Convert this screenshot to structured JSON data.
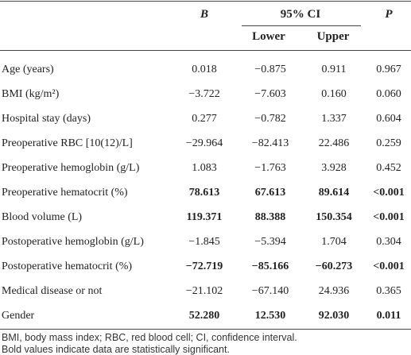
{
  "table": {
    "header": {
      "b": "B",
      "ci": "95% CI",
      "lower": "Lower",
      "upper": "Upper",
      "p": "P"
    },
    "rows": [
      {
        "cells": [
          "Age (years)",
          "0.018",
          "−0.875",
          "0.911",
          "0.967"
        ],
        "bold": false
      },
      {
        "cells": [
          "BMI (kg/m²)",
          "−3.722",
          "−7.603",
          "0.160",
          "0.060"
        ],
        "bold": false
      },
      {
        "cells": [
          "Hospital stay (days)",
          "0.277",
          "−0.782",
          "1.337",
          "0.604"
        ],
        "bold": false
      },
      {
        "cells": [
          "Preoperative RBC [10(12)/L]",
          "−29.964",
          "−82.413",
          "22.486",
          "0.259"
        ],
        "bold": false
      },
      {
        "cells": [
          "Preoperative hemoglobin (g/L)",
          "1.083",
          "−1.763",
          "3.928",
          "0.452"
        ],
        "bold": false
      },
      {
        "cells": [
          "Preoperative hematocrit (%)",
          "78.613",
          "67.613",
          "89.614",
          "<0.001"
        ],
        "bold": true
      },
      {
        "cells": [
          "Blood volume (L)",
          "119.371",
          "88.388",
          "150.354",
          "<0.001"
        ],
        "bold": true
      },
      {
        "cells": [
          "Postoperative hemoglobin (g/L)",
          "−1.845",
          "−5.394",
          "1.704",
          "0.304"
        ],
        "bold": false
      },
      {
        "cells": [
          "Postoperative hematocrit (%)",
          "−72.719",
          "−85.166",
          "−60.273",
          "<0.001"
        ],
        "bold": true
      },
      {
        "cells": [
          "Medical disease or not",
          "−21.102",
          "−67.140",
          "24.936",
          "0.365"
        ],
        "bold": false
      },
      {
        "cells": [
          "Gender",
          "52.280",
          "12.530",
          "92.030",
          "0.011"
        ],
        "bold": true
      }
    ],
    "footnotes": [
      "BMI, body mass index; RBC, red blood cell; CI, confidence interval.",
      "Bold values indicate data are statistically significant."
    ]
  }
}
